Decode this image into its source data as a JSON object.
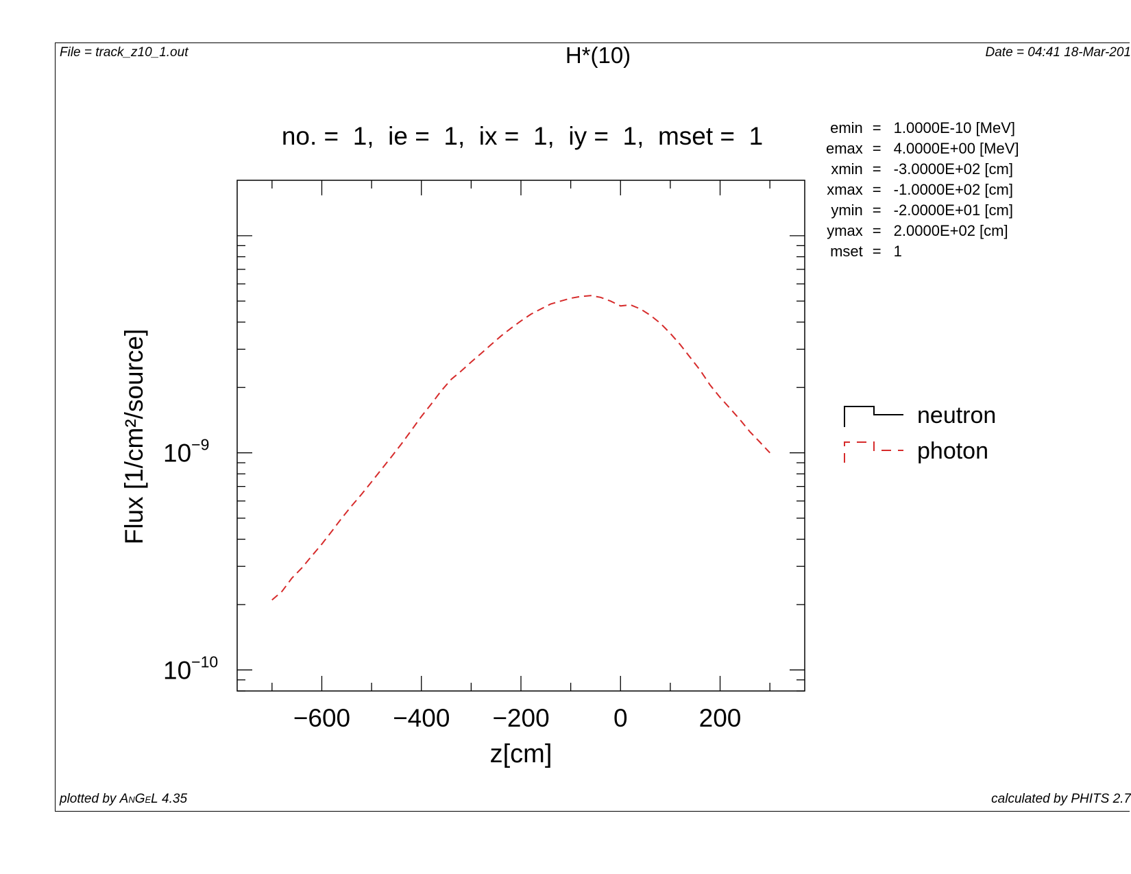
{
  "header": {
    "file": "File = track_z10_1.out",
    "title": "H*(10)",
    "date": "Date = 04:41 18-Mar-201"
  },
  "subtitle": "no. =  1,  ie =  1,  ix =  1,  iy =  1,  mset =  1",
  "params": [
    {
      "key": "emin",
      "eq": "=",
      "value": "1.0000E-10 [MeV]"
    },
    {
      "key": "emax",
      "eq": "=",
      "value": "4.0000E+00 [MeV]"
    },
    {
      "key": "xmin",
      "eq": "=",
      "value": "-3.0000E+02 [cm]"
    },
    {
      "key": "xmax",
      "eq": "=",
      "value": "-1.0000E+02 [cm]"
    },
    {
      "key": "ymin",
      "eq": "=",
      "value": "-2.0000E+01 [cm]"
    },
    {
      "key": "ymax",
      "eq": "=",
      "value": "2.0000E+02 [cm]"
    },
    {
      "key": "mset",
      "eq": "=",
      "value": "1"
    }
  ],
  "footer": {
    "plotted_prefix": "plotted by ",
    "plotted_name": "AnGeL",
    "plotted_version": " 4.35",
    "calc_prefix": "calculated by ",
    "calc_name": "PHITS",
    "calc_version": " 2.7"
  },
  "chart_data": {
    "type": "line",
    "title": "no. =  1,  ie =  1,  ix =  1,  iy =  1,  mset =  1",
    "xlabel": "z[cm]",
    "ylabel": "Flux [1/cm²/source]",
    "x_scale": "linear",
    "y_scale": "log",
    "xlim": [
      -770,
      370
    ],
    "ylim": [
      8e-11,
      1.8e-08
    ],
    "x_ticks": [
      -600,
      -400,
      -200,
      0,
      200
    ],
    "y_ticks": [
      {
        "value": 1e-09,
        "base": "10",
        "exp": "−9"
      },
      {
        "value": 1e-10,
        "base": "10",
        "exp": "−10"
      }
    ],
    "legend_position": "right",
    "series": [
      {
        "name": "neutron",
        "color": "#000000",
        "style": "solid-step",
        "x": [],
        "y": []
      },
      {
        "name": "photon",
        "color": "#d62b2b",
        "style": "dashed",
        "x": [
          -700,
          -680,
          -660,
          -640,
          -620,
          -600,
          -580,
          -560,
          -540,
          -520,
          -500,
          -480,
          -460,
          -440,
          -420,
          -400,
          -380,
          -360,
          -340,
          -320,
          -300,
          -280,
          -260,
          -240,
          -220,
          -200,
          -180,
          -160,
          -140,
          -120,
          -100,
          -80,
          -60,
          -40,
          -20,
          0,
          20,
          40,
          60,
          80,
          100,
          120,
          140,
          160,
          180,
          200,
          220,
          240,
          260,
          280,
          300
        ],
        "y": [
          2.1e-10,
          2.3e-10,
          2.65e-10,
          2.95e-10,
          3.35e-10,
          3.8e-10,
          4.35e-10,
          5e-10,
          5.7e-10,
          6.45e-10,
          7.35e-10,
          8.4e-10,
          9.6e-10,
          1.1e-09,
          1.27e-09,
          1.47e-09,
          1.68e-09,
          1.93e-09,
          2.18e-09,
          2.38e-09,
          2.62e-09,
          2.87e-09,
          3.15e-09,
          3.45e-09,
          3.75e-09,
          4.05e-09,
          4.35e-09,
          4.6e-09,
          4.85e-09,
          5e-09,
          5.15e-09,
          5.25e-09,
          5.3e-09,
          5.2e-09,
          5e-09,
          4.75e-09,
          4.8e-09,
          4.6e-09,
          4.3e-09,
          3.95e-09,
          3.55e-09,
          3.15e-09,
          2.75e-09,
          2.4e-09,
          2.05e-09,
          1.8e-09,
          1.6e-09,
          1.42e-09,
          1.25e-09,
          1.12e-09,
          1e-09
        ]
      }
    ]
  }
}
